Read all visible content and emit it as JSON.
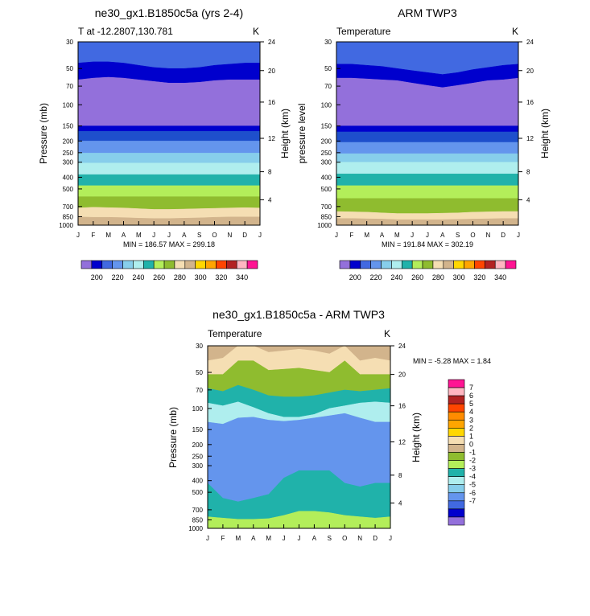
{
  "chart_data": [
    {
      "type": "contour",
      "title": "ne30_gx1.B1850c5a (yrs 2-4)",
      "left_label": "T at -12.2807,130.781",
      "right_label": "K",
      "ylabel": "Pressure (mb)",
      "ylabel_right": "Height (km)",
      "minmax": "MIN = 186.57 MAX = 299.18",
      "colorbar_labels": [
        "200",
        "220",
        "240",
        "260",
        "280",
        "300",
        "320",
        "340"
      ],
      "boundaries": [
        [
          30,
          30,
          30,
          30,
          30,
          30,
          30,
          30,
          30,
          30,
          30,
          30,
          30
        ],
        [
          45,
          44,
          44,
          45,
          47,
          49,
          50,
          50,
          49,
          47,
          46,
          45,
          45
        ],
        [
          62,
          60,
          59,
          60,
          62,
          64,
          66,
          66,
          65,
          63,
          62,
          62,
          62
        ],
        [
          150,
          150,
          150,
          150,
          150,
          150,
          150,
          150,
          150,
          150,
          150,
          150,
          150
        ],
        [
          166,
          166,
          166,
          166,
          166,
          166,
          166,
          166,
          166,
          166,
          166,
          166,
          166
        ],
        [
          200,
          200,
          200,
          200,
          200,
          200,
          200,
          200,
          200,
          200,
          200,
          200,
          200
        ],
        [
          252,
          252,
          252,
          252,
          252,
          252,
          252,
          252,
          252,
          252,
          252,
          252,
          252
        ],
        [
          305,
          305,
          305,
          305,
          305,
          305,
          305,
          305,
          305,
          305,
          305,
          305,
          305
        ],
        [
          380,
          380,
          380,
          380,
          380,
          380,
          380,
          380,
          380,
          380,
          380,
          380,
          380
        ],
        [
          470,
          470,
          470,
          470,
          470,
          470,
          470,
          470,
          470,
          470,
          470,
          470,
          470
        ],
        [
          580,
          580,
          580,
          580,
          580,
          580,
          580,
          580,
          580,
          580,
          580,
          580,
          580
        ],
        [
          720,
          710,
          715,
          720,
          730,
          740,
          740,
          735,
          730,
          725,
          720,
          715,
          720
        ],
        [
          855,
          860,
          860,
          865,
          875,
          880,
          880,
          875,
          870,
          860,
          855,
          855,
          855
        ],
        [
          1000,
          1000,
          1000,
          1000,
          1000,
          1000,
          1000,
          1000,
          1000,
          1000,
          1000,
          1000,
          1000
        ]
      ],
      "band_colors": [
        "#4169e1",
        "#0000cd",
        "#9370db",
        "#0000cd",
        "#1e4fcc",
        "#6495ed",
        "#87ceeb",
        "#afeeee",
        "#20b2aa",
        "#b3ee5a",
        "#8fbc2f",
        "#f5deb3",
        "#d2b48c",
        "#ffd700"
      ]
    },
    {
      "type": "contour",
      "title": "ARM TWP3",
      "left_label": "Temperature",
      "right_label": "K",
      "ylabel": "pressure level",
      "ylabel_right": "Height (km)",
      "minmax": "MIN = 191.84 MAX = 302.19",
      "colorbar_labels": [
        "200",
        "220",
        "240",
        "260",
        "280",
        "300",
        "320",
        "340"
      ],
      "boundaries": [
        [
          30,
          30,
          30,
          30,
          30,
          30,
          30,
          30,
          30,
          30,
          30,
          30,
          30
        ],
        [
          46,
          46,
          47,
          48,
          50,
          52,
          54,
          56,
          54,
          51,
          49,
          47,
          46
        ],
        [
          60,
          60,
          61,
          62,
          63,
          66,
          69,
          72,
          69,
          66,
          63,
          62,
          60
        ],
        [
          150,
          150,
          150,
          150,
          150,
          150,
          150,
          150,
          150,
          150,
          150,
          150,
          150
        ],
        [
          168,
          168,
          168,
          168,
          168,
          168,
          168,
          168,
          168,
          168,
          168,
          168,
          168
        ],
        [
          205,
          205,
          205,
          205,
          205,
          205,
          205,
          205,
          205,
          205,
          205,
          205,
          205
        ],
        [
          255,
          255,
          255,
          255,
          255,
          255,
          255,
          255,
          255,
          255,
          255,
          255,
          255
        ],
        [
          300,
          300,
          300,
          300,
          300,
          300,
          300,
          300,
          300,
          300,
          300,
          300,
          300
        ],
        [
          375,
          375,
          375,
          375,
          375,
          375,
          375,
          375,
          375,
          375,
          375,
          375,
          375
        ],
        [
          470,
          470,
          470,
          470,
          470,
          470,
          470,
          470,
          470,
          470,
          470,
          470,
          470
        ],
        [
          600,
          600,
          600,
          600,
          600,
          600,
          600,
          600,
          600,
          600,
          600,
          600,
          600
        ],
        [
          770,
          775,
          780,
          790,
          800,
          800,
          800,
          795,
          790,
          780,
          775,
          770,
          770
        ],
        [
          880,
          880,
          885,
          890,
          900,
          900,
          900,
          900,
          895,
          890,
          885,
          880,
          880
        ],
        [
          1000,
          1000,
          1000,
          1000,
          1000,
          1000,
          1000,
          1000,
          1000,
          1000,
          1000,
          1000,
          1000
        ]
      ],
      "band_colors": [
        "#4169e1",
        "#0000cd",
        "#9370db",
        "#0000cd",
        "#1e4fcc",
        "#6495ed",
        "#87ceeb",
        "#afeeee",
        "#20b2aa",
        "#b3ee5a",
        "#8fbc2f",
        "#f5deb3",
        "#d2b48c",
        "#ffd700"
      ]
    },
    {
      "type": "contour",
      "title": "ne30_gx1.B1850c5a - ARM TWP3",
      "left_label": "Temperature",
      "right_label": "K",
      "ylabel": "Pressure (mb)",
      "ylabel_right": "Height (km)",
      "minmax": "MIN = -5.28 MAX =  1.84",
      "colorbar_labels": [
        "7",
        "6",
        "5",
        "4",
        "3",
        "2",
        "1",
        "0",
        "-1",
        "-2",
        "-3",
        "-4",
        "-5",
        "-6",
        "-7"
      ],
      "colorbar_colors": [
        "#ff1493",
        "#ffb6c1",
        "#b22222",
        "#ff4500",
        "#ff8c00",
        "#ffa500",
        "#ffd700",
        "#f5deb3",
        "#d2b48c",
        "#8fbc2f",
        "#b3ee5a",
        "#20b2aa",
        "#afeeee",
        "#87ceeb",
        "#6495ed",
        "#4169e1",
        "#0000cd",
        "#9370db"
      ],
      "boundaries": [
        [
          30,
          30,
          30,
          30,
          30,
          30,
          30,
          30,
          30,
          30,
          30,
          30,
          30
        ],
        [
          40,
          38,
          30,
          30,
          34,
          33,
          32,
          33,
          35,
          30,
          40,
          38,
          40
        ],
        [
          52,
          52,
          40,
          40,
          48,
          47,
          46,
          48,
          50,
          40,
          52,
          52,
          52
        ],
        [
          68,
          72,
          64,
          70,
          78,
          80,
          80,
          78,
          74,
          70,
          72,
          70,
          68
        ],
        [
          90,
          95,
          88,
          98,
          110,
          118,
          118,
          112,
          100,
          95,
          90,
          88,
          90
        ],
        [
          130,
          135,
          120,
          118,
          125,
          128,
          125,
          120,
          115,
          110,
          120,
          130,
          130
        ],
        [
          420,
          560,
          600,
          560,
          520,
          380,
          330,
          330,
          330,
          420,
          450,
          420,
          420
        ],
        [
          800,
          820,
          840,
          840,
          830,
          780,
          720,
          720,
          740,
          780,
          800,
          820,
          800
        ],
        [
          1000,
          1000,
          1000,
          1000,
          1000,
          1000,
          1000,
          1000,
          1000,
          1000,
          1000,
          1000,
          1000
        ]
      ],
      "band_colors": [
        "#d2b48c",
        "#f5deb3",
        "#8fbc2f",
        "#20b2aa",
        "#afeeee",
        "#6495ed",
        "#20b2aa",
        "#b3ee5a"
      ]
    }
  ],
  "x_tick_labels": [
    "J",
    "F",
    "M",
    "A",
    "M",
    "J",
    "J",
    "A",
    "S",
    "O",
    "N",
    "D",
    "J"
  ],
  "pressure_ticks": [
    "30",
    "50",
    "70",
    "100",
    "150",
    "200",
    "250",
    "300",
    "400",
    "500",
    "700",
    "850",
    "1000"
  ],
  "pressure_values": [
    30,
    50,
    70,
    100,
    150,
    200,
    250,
    300,
    400,
    500,
    700,
    850,
    1000
  ],
  "height_ticks": [
    "24",
    "20",
    "16",
    "12",
    "8",
    "4"
  ],
  "height_pressures": [
    30,
    52,
    95,
    190,
    360,
    615
  ]
}
